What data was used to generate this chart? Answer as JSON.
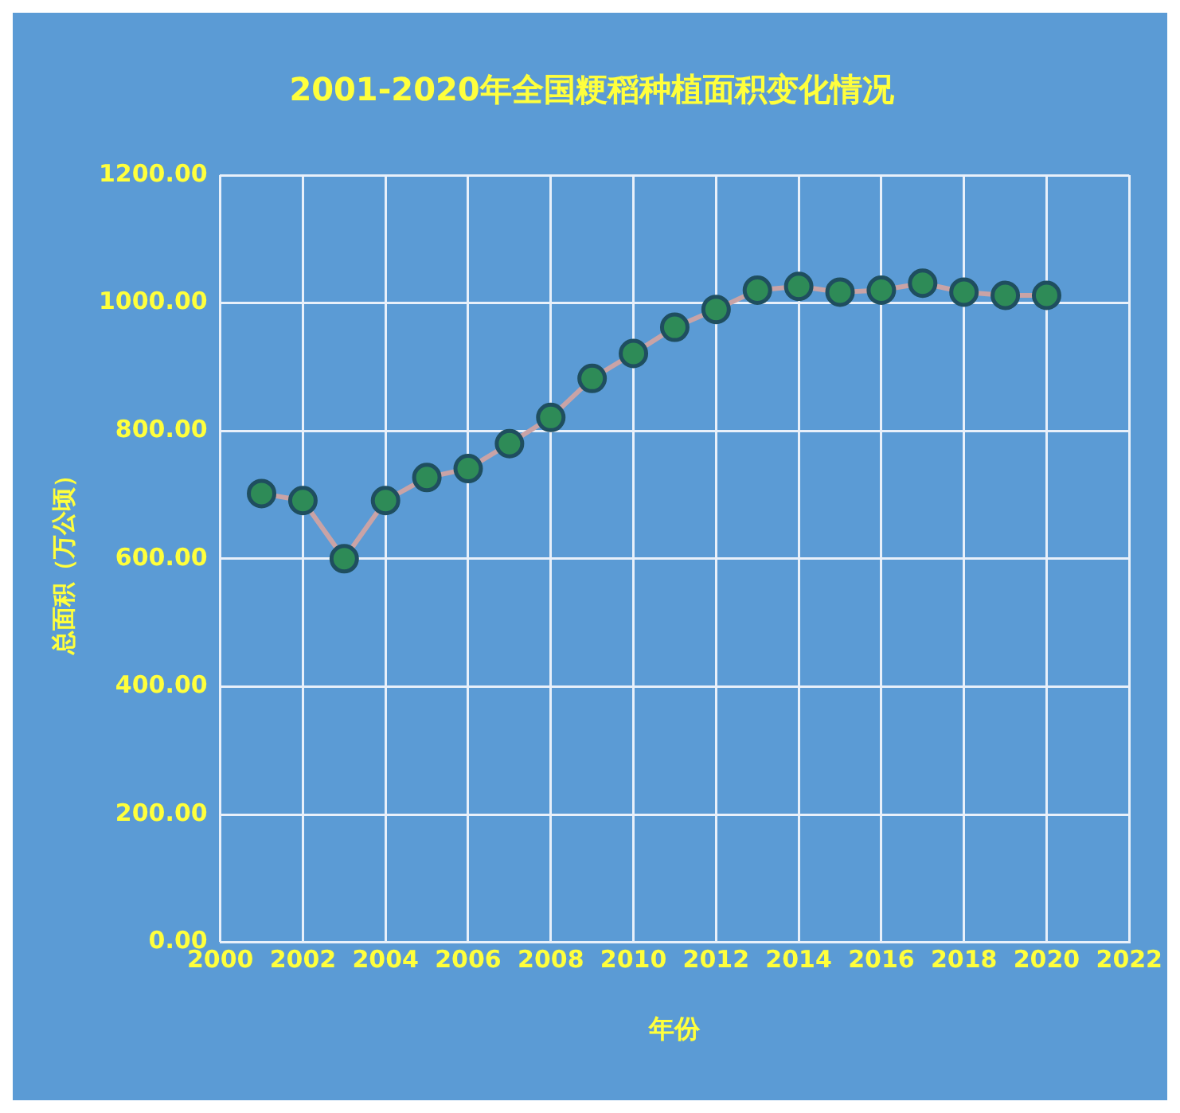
{
  "chart_data": {
    "type": "line",
    "title": "2001-2020年全国粳稻种植面积变化情况",
    "xlabel": "年份",
    "ylabel": "总面积（万公顷）",
    "x": [
      2001,
      2002,
      2003,
      2004,
      2005,
      2006,
      2007,
      2008,
      2009,
      2010,
      2011,
      2012,
      2013,
      2014,
      2015,
      2016,
      2017,
      2018,
      2019,
      2020
    ],
    "series": [
      {
        "color": "#c9a3a6",
        "values": [
          702,
          691,
          600,
          691,
          727,
          741,
          780,
          821,
          882,
          921,
          962,
          990,
          1020,
          1026,
          1017,
          1020,
          1031,
          1017,
          1012,
          1012
        ]
      }
    ],
    "xlim": [
      2000,
      2022
    ],
    "xticks": [
      2000,
      2002,
      2004,
      2006,
      2008,
      2010,
      2012,
      2014,
      2016,
      2018,
      2020,
      2022
    ],
    "ylim": [
      0,
      1200
    ],
    "yticks": [
      {
        "value": 0,
        "label": "0.00"
      },
      {
        "value": 200,
        "label": "200.00"
      },
      {
        "value": 400,
        "label": "400.00"
      },
      {
        "value": 600,
        "label": "600.00"
      },
      {
        "value": 800,
        "label": "800.00"
      },
      {
        "value": 1000,
        "label": "1000.00"
      },
      {
        "value": 1200,
        "label": "1200.00"
      }
    ],
    "grid": true,
    "legend": false,
    "marker": "circle",
    "line_style": "solid"
  }
}
